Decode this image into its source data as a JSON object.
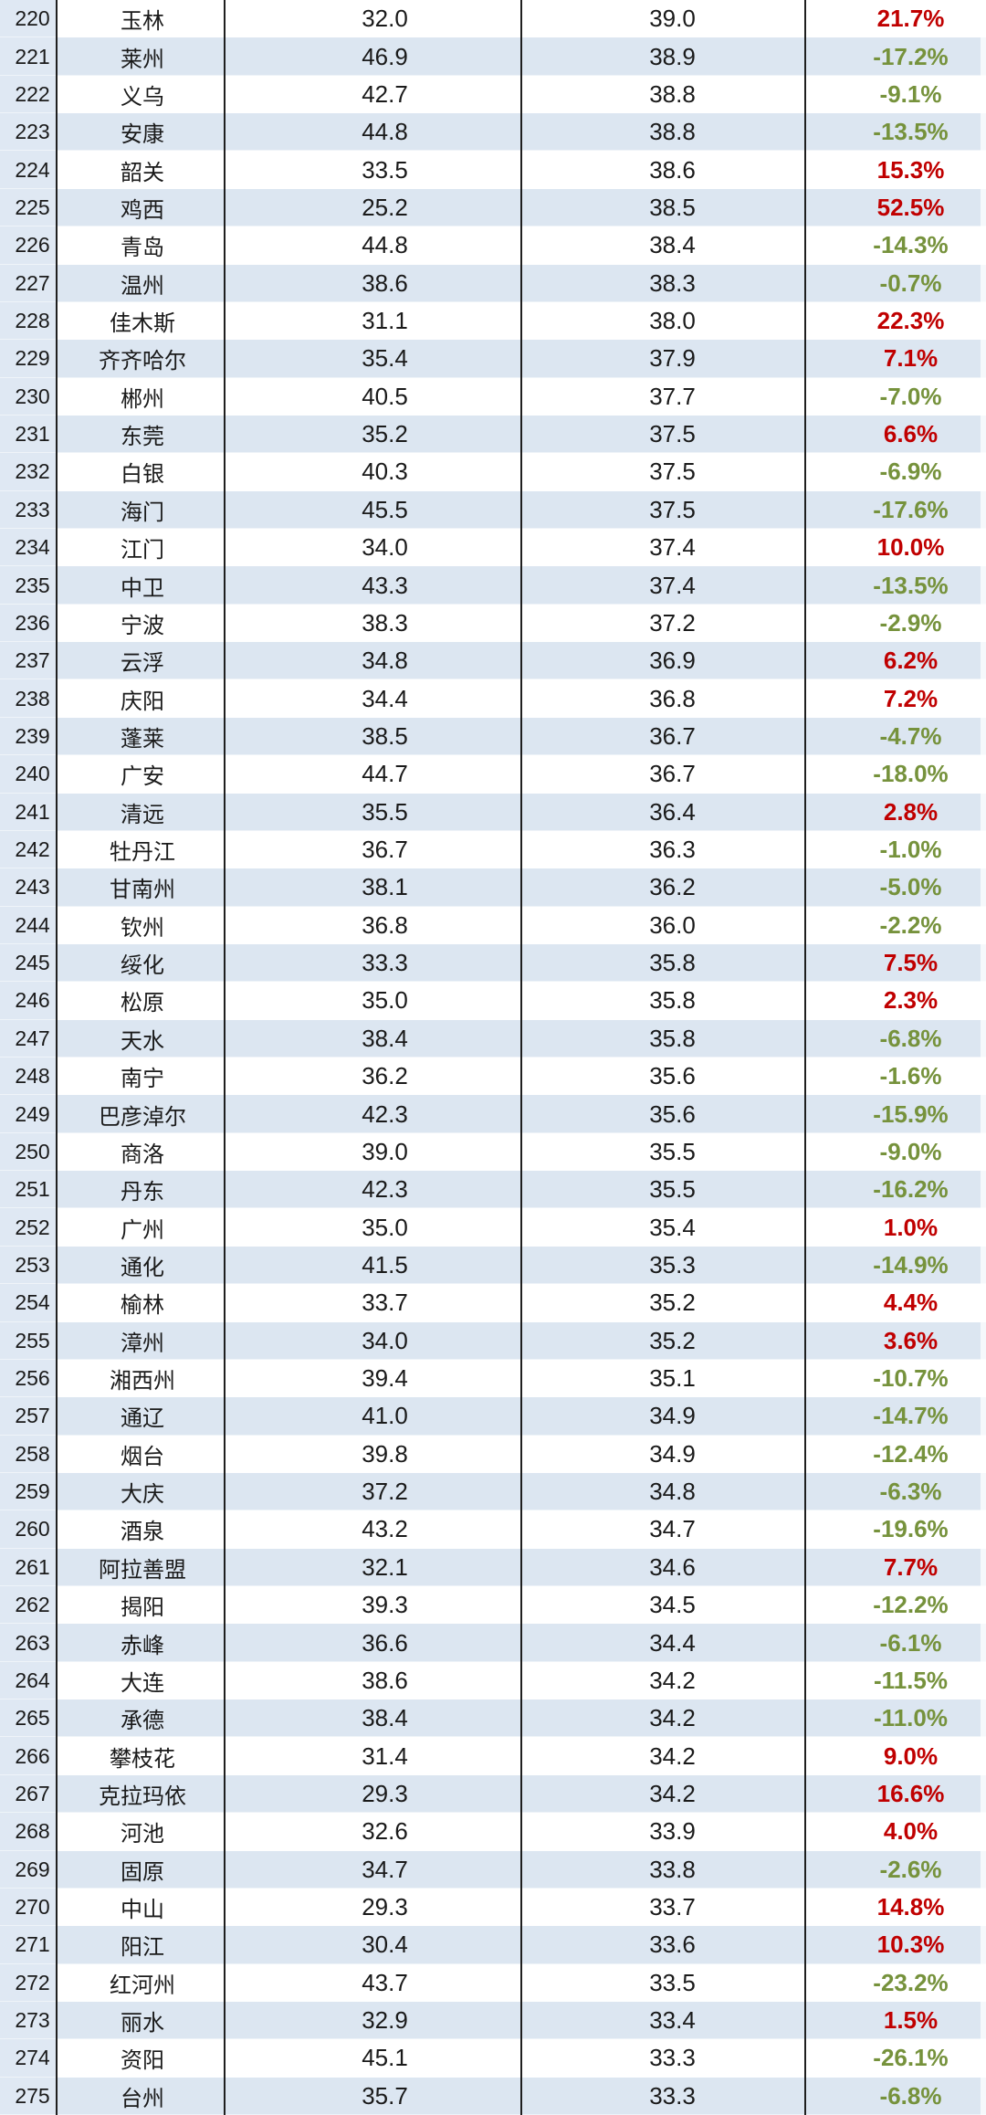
{
  "colors": {
    "positive": "#C00000",
    "negative": "#76923C",
    "row_band": "#DCE6F1",
    "rank_column": "#DFE8F3",
    "border": "#1F1F1F",
    "text": "#1A1A1A",
    "background": "#FFFFFF"
  },
  "chart_data": {
    "type": "table",
    "title": "",
    "description": "Ranked Chinese cities (ranks 220-275) with two numeric value columns and a percent change column; red bold = positive change, olive green bold = negative change; alternating white/light-blue row bands; rank column always light blue with black vertical column rules.",
    "columns": [
      "rank",
      "city",
      "value_1",
      "value_2",
      "change_pct"
    ],
    "rows": [
      [
        220,
        "玉林",
        "32.0",
        "39.0",
        "21.7%"
      ],
      [
        221,
        "莱州",
        "46.9",
        "38.9",
        "-17.2%"
      ],
      [
        222,
        "义乌",
        "42.7",
        "38.8",
        "-9.1%"
      ],
      [
        223,
        "安康",
        "44.8",
        "38.8",
        "-13.5%"
      ],
      [
        224,
        "韶关",
        "33.5",
        "38.6",
        "15.3%"
      ],
      [
        225,
        "鸡西",
        "25.2",
        "38.5",
        "52.5%"
      ],
      [
        226,
        "青岛",
        "44.8",
        "38.4",
        "-14.3%"
      ],
      [
        227,
        "温州",
        "38.6",
        "38.3",
        "-0.7%"
      ],
      [
        228,
        "佳木斯",
        "31.1",
        "38.0",
        "22.3%"
      ],
      [
        229,
        "齐齐哈尔",
        "35.4",
        "37.9",
        "7.1%"
      ],
      [
        230,
        "郴州",
        "40.5",
        "37.7",
        "-7.0%"
      ],
      [
        231,
        "东莞",
        "35.2",
        "37.5",
        "6.6%"
      ],
      [
        232,
        "白银",
        "40.3",
        "37.5",
        "-6.9%"
      ],
      [
        233,
        "海门",
        "45.5",
        "37.5",
        "-17.6%"
      ],
      [
        234,
        "江门",
        "34.0",
        "37.4",
        "10.0%"
      ],
      [
        235,
        "中卫",
        "43.3",
        "37.4",
        "-13.5%"
      ],
      [
        236,
        "宁波",
        "38.3",
        "37.2",
        "-2.9%"
      ],
      [
        237,
        "云浮",
        "34.8",
        "36.9",
        "6.2%"
      ],
      [
        238,
        "庆阳",
        "34.4",
        "36.8",
        "7.2%"
      ],
      [
        239,
        "蓬莱",
        "38.5",
        "36.7",
        "-4.7%"
      ],
      [
        240,
        "广安",
        "44.7",
        "36.7",
        "-18.0%"
      ],
      [
        241,
        "清远",
        "35.5",
        "36.4",
        "2.8%"
      ],
      [
        242,
        "牡丹江",
        "36.7",
        "36.3",
        "-1.0%"
      ],
      [
        243,
        "甘南州",
        "38.1",
        "36.2",
        "-5.0%"
      ],
      [
        244,
        "钦州",
        "36.8",
        "36.0",
        "-2.2%"
      ],
      [
        245,
        "绥化",
        "33.3",
        "35.8",
        "7.5%"
      ],
      [
        246,
        "松原",
        "35.0",
        "35.8",
        "2.3%"
      ],
      [
        247,
        "天水",
        "38.4",
        "35.8",
        "-6.8%"
      ],
      [
        248,
        "南宁",
        "36.2",
        "35.6",
        "-1.6%"
      ],
      [
        249,
        "巴彦淖尔",
        "42.3",
        "35.6",
        "-15.9%"
      ],
      [
        250,
        "商洛",
        "39.0",
        "35.5",
        "-9.0%"
      ],
      [
        251,
        "丹东",
        "42.3",
        "35.5",
        "-16.2%"
      ],
      [
        252,
        "广州",
        "35.0",
        "35.4",
        "1.0%"
      ],
      [
        253,
        "通化",
        "41.5",
        "35.3",
        "-14.9%"
      ],
      [
        254,
        "榆林",
        "33.7",
        "35.2",
        "4.4%"
      ],
      [
        255,
        "漳州",
        "34.0",
        "35.2",
        "3.6%"
      ],
      [
        256,
        "湘西州",
        "39.4",
        "35.1",
        "-10.7%"
      ],
      [
        257,
        "通辽",
        "41.0",
        "34.9",
        "-14.7%"
      ],
      [
        258,
        "烟台",
        "39.8",
        "34.9",
        "-12.4%"
      ],
      [
        259,
        "大庆",
        "37.2",
        "34.8",
        "-6.3%"
      ],
      [
        260,
        "酒泉",
        "43.2",
        "34.7",
        "-19.6%"
      ],
      [
        261,
        "阿拉善盟",
        "32.1",
        "34.6",
        "7.7%"
      ],
      [
        262,
        "揭阳",
        "39.3",
        "34.5",
        "-12.2%"
      ],
      [
        263,
        "赤峰",
        "36.6",
        "34.4",
        "-6.1%"
      ],
      [
        264,
        "大连",
        "38.6",
        "34.2",
        "-11.5%"
      ],
      [
        265,
        "承德",
        "38.4",
        "34.2",
        "-11.0%"
      ],
      [
        266,
        "攀枝花",
        "31.4",
        "34.2",
        "9.0%"
      ],
      [
        267,
        "克拉玛依",
        "29.3",
        "34.2",
        "16.6%"
      ],
      [
        268,
        "河池",
        "32.6",
        "33.9",
        "4.0%"
      ],
      [
        269,
        "固原",
        "34.7",
        "33.8",
        "-2.6%"
      ],
      [
        270,
        "中山",
        "29.3",
        "33.7",
        "14.8%"
      ],
      [
        271,
        "阳江",
        "30.4",
        "33.6",
        "10.3%"
      ],
      [
        272,
        "红河州",
        "43.7",
        "33.5",
        "-23.2%"
      ],
      [
        273,
        "丽水",
        "32.9",
        "33.4",
        "1.5%"
      ],
      [
        274,
        "资阳",
        "45.1",
        "33.3",
        "-26.1%"
      ],
      [
        275,
        "台州",
        "35.7",
        "33.3",
        "-6.8%"
      ]
    ]
  }
}
